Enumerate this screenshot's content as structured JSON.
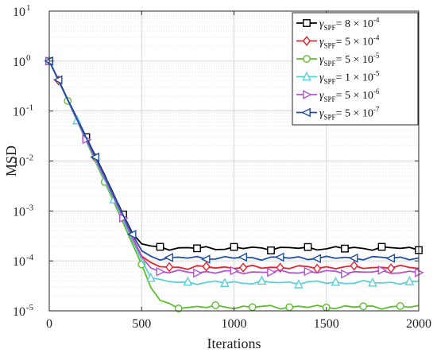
{
  "chart_data": {
    "type": "line",
    "x": [
      0,
      50,
      100,
      150,
      200,
      250,
      300,
      350,
      400,
      450,
      500,
      550,
      600,
      650,
      700,
      750,
      800,
      850,
      900,
      950,
      1000,
      1050,
      1100,
      1150,
      1200,
      1250,
      1300,
      1350,
      1400,
      1450,
      1500,
      1550,
      1600,
      1650,
      1700,
      1750,
      1800,
      1850,
      1900,
      1950,
      2000
    ],
    "xlabel": "Iterations",
    "ylabel": "MSD",
    "xlim": [
      0,
      2000
    ],
    "ylim": [
      1e-05,
      10
    ],
    "yscale": "log",
    "xticks": [
      "0",
      "500",
      "1000",
      "1500",
      "2000"
    ],
    "yticks": [
      {
        "base": "10",
        "exp": "-5"
      },
      {
        "base": "10",
        "exp": "-4"
      },
      {
        "base": "10",
        "exp": "-3"
      },
      {
        "base": "10",
        "exp": "-2"
      },
      {
        "base": "10",
        "exp": "-1"
      },
      {
        "base": "10",
        "exp": "0"
      },
      {
        "base": "10",
        "exp": "1"
      }
    ],
    "grid": true,
    "legend_position": "top-right",
    "series": [
      {
        "legend": {
          "sym": "γ",
          "sub": "SPF",
          "mid": "= 8 × 10",
          "sup": "-4"
        },
        "color": "#000000",
        "marker": "square",
        "values": [
          1.0,
          0.42,
          0.17,
          0.072,
          0.03,
          0.0125,
          0.0052,
          0.0021,
          0.00085,
          0.00036,
          0.00022,
          0.00019,
          0.000185,
          0.000182,
          0.00018,
          0.00018,
          0.00018,
          0.00018,
          0.00018,
          0.00018,
          0.00018,
          0.00018,
          0.00018,
          0.00018,
          0.00018,
          0.00018,
          0.00018,
          0.00018,
          0.00018,
          0.00018,
          0.00018,
          0.00018,
          0.00018,
          0.00018,
          0.00018,
          0.00018,
          0.00018,
          0.00018,
          0.00018,
          0.00018,
          0.00018
        ]
      },
      {
        "legend": {
          "sym": "γ",
          "sub": "SPF",
          "mid": "= 5 × 10",
          "sup": "-4"
        },
        "color": "#e8212e",
        "marker": "diamond",
        "values": [
          1.0,
          0.41,
          0.165,
          0.068,
          0.028,
          0.0115,
          0.0047,
          0.0019,
          0.00075,
          0.0003,
          0.000125,
          8.5e-05,
          7.8e-05,
          7.5e-05,
          7.5e-05,
          7.4e-05,
          7.5e-05,
          7.4e-05,
          7.5e-05,
          7.4e-05,
          7.5e-05,
          7.4e-05,
          7.5e-05,
          7.4e-05,
          7.5e-05,
          7.4e-05,
          7.5e-05,
          7.4e-05,
          7.5e-05,
          7.4e-05,
          7.5e-05,
          7.4e-05,
          7.5e-05,
          7.4e-05,
          7.5e-05,
          7.4e-05,
          7.5e-05,
          7.4e-05,
          7.5e-05,
          7.4e-05,
          7.5e-05
        ]
      },
      {
        "legend": {
          "sym": "γ",
          "sub": "SPF",
          "mid": "= 5 × 10",
          "sup": "-5"
        },
        "color": "#5cc02c",
        "marker": "circle",
        "values": [
          1.0,
          0.4,
          0.16,
          0.064,
          0.025,
          0.0098,
          0.0038,
          0.0015,
          0.00058,
          0.00022,
          8.5e-05,
          3e-05,
          1.6e-05,
          1.3e-05,
          1.2e-05,
          1.2e-05,
          1.2e-05,
          1.2e-05,
          1.2e-05,
          1.2e-05,
          1.2e-05,
          1.2e-05,
          1.2e-05,
          1.2e-05,
          1.2e-05,
          1.2e-05,
          1.2e-05,
          1.2e-05,
          1.2e-05,
          1.2e-05,
          1.2e-05,
          1.2e-05,
          1.2e-05,
          1.2e-05,
          1.2e-05,
          1.2e-05,
          1.2e-05,
          1.2e-05,
          1.2e-05,
          1.2e-05,
          1.2e-05
        ]
      },
      {
        "legend": {
          "sym": "γ",
          "sub": "SPF",
          "mid": "= 1 × 10",
          "sup": "-5"
        },
        "color": "#5ccfd8",
        "marker": "triangle-up",
        "values": [
          1.0,
          0.4,
          0.162,
          0.065,
          0.026,
          0.0105,
          0.0042,
          0.0017,
          0.00066,
          0.00026,
          0.000105,
          5e-05,
          4e-05,
          3.8e-05,
          3.7e-05,
          3.7e-05,
          3.7e-05,
          3.7e-05,
          3.7e-05,
          3.7e-05,
          3.7e-05,
          3.7e-05,
          3.7e-05,
          3.7e-05,
          3.7e-05,
          3.7e-05,
          3.7e-05,
          3.7e-05,
          3.7e-05,
          3.7e-05,
          3.7e-05,
          3.7e-05,
          3.7e-05,
          3.7e-05,
          3.7e-05,
          3.7e-05,
          3.7e-05,
          3.7e-05,
          3.7e-05,
          3.7e-05,
          3.7e-05
        ]
      },
      {
        "legend": {
          "sym": "γ",
          "sub": "SPF",
          "mid": "= 5 × 10",
          "sup": "-6"
        },
        "color": "#b455cf",
        "marker": "triangle-right",
        "values": [
          1.0,
          0.41,
          0.165,
          0.067,
          0.027,
          0.011,
          0.0045,
          0.0018,
          0.00072,
          0.00029,
          0.00012,
          7.2e-05,
          6.2e-05,
          6e-05,
          6e-05,
          6e-05,
          6e-05,
          6e-05,
          6e-05,
          6e-05,
          6e-05,
          6e-05,
          6e-05,
          6e-05,
          6e-05,
          6e-05,
          6e-05,
          6e-05,
          6e-05,
          6e-05,
          6e-05,
          6e-05,
          6e-05,
          6e-05,
          6e-05,
          6e-05,
          6e-05,
          6e-05,
          6e-05,
          6e-05,
          6e-05
        ]
      },
      {
        "legend": {
          "sym": "γ",
          "sub": "SPF",
          "mid": "= 5 × 10",
          "sup": "-7"
        },
        "color": "#1f4fa6",
        "marker": "triangle-left",
        "values": [
          1.0,
          0.42,
          0.17,
          0.07,
          0.029,
          0.012,
          0.005,
          0.002,
          0.00082,
          0.00034,
          0.00016,
          0.00012,
          0.000115,
          0.000115,
          0.000115,
          0.000115,
          0.000115,
          0.000115,
          0.000115,
          0.000115,
          0.000115,
          0.000115,
          0.000115,
          0.000115,
          0.000115,
          0.000115,
          0.000115,
          0.000115,
          0.000115,
          0.000115,
          0.000115,
          0.000115,
          0.000115,
          0.000115,
          0.000115,
          0.000115,
          0.000115,
          0.000115,
          0.000115,
          0.000115,
          0.000115
        ]
      }
    ]
  }
}
